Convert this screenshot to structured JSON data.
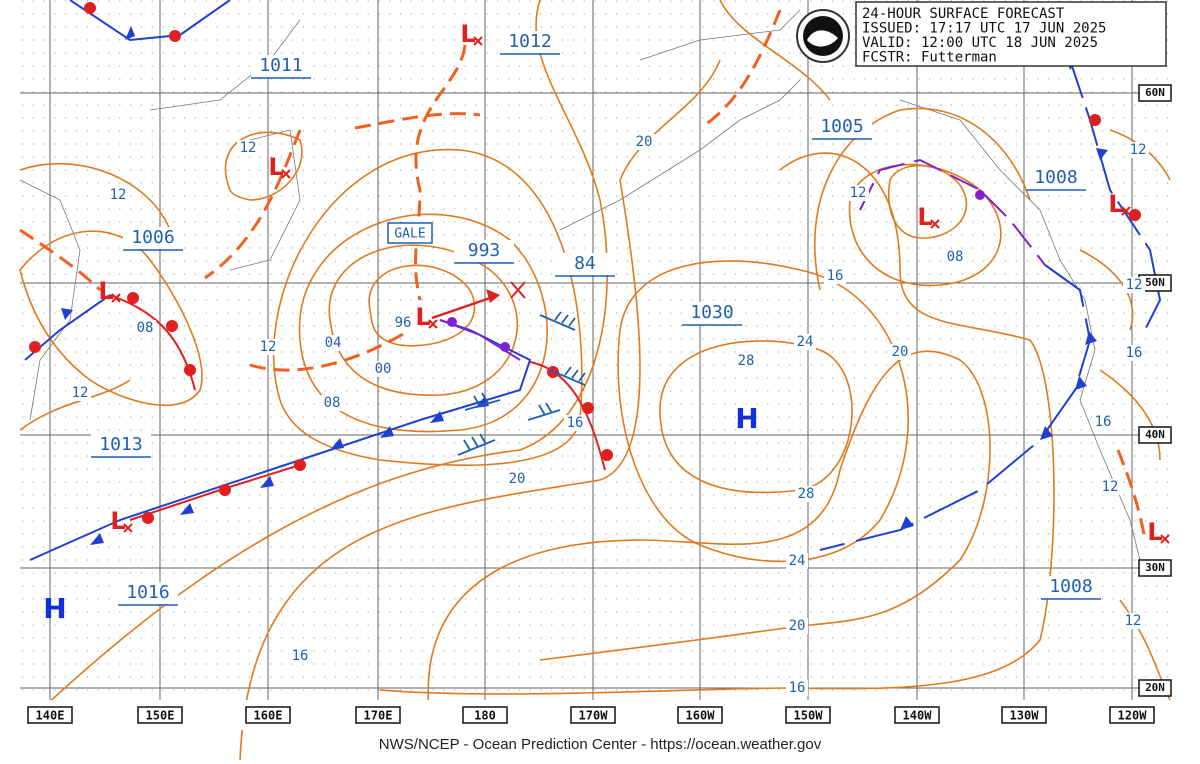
{
  "header": {
    "lines": [
      "24-HOUR SURFACE FORECAST",
      "ISSUED: 17:17 UTC 17 JUN 2025",
      "VALID: 12:00 UTC 18 JUN 2025",
      "FCSTR: Futterman"
    ]
  },
  "footer": "NWS/NCEP - Ocean Prediction Center - https://ocean.weather.gov",
  "longitude_labels": [
    "140E",
    "150E",
    "160E",
    "170E",
    "180",
    "170W",
    "160W",
    "150W",
    "140W",
    "130W",
    "120W"
  ],
  "latitude_labels": [
    "60N",
    "50N",
    "40N",
    "30N",
    "20N"
  ],
  "pressure_labels": [
    "1011",
    "1012",
    "1005",
    "1008",
    "1006",
    "993",
    "84",
    "1030",
    "1013",
    "1016",
    "1008"
  ],
  "isobar_labels": [
    "12",
    "12",
    "08",
    "12",
    "12",
    "04",
    "96",
    "00",
    "08",
    "20",
    "16",
    "08",
    "12",
    "24",
    "20",
    "28",
    "16",
    "20",
    "28",
    "24",
    "20",
    "16",
    "16",
    "12",
    "12",
    "16",
    "16",
    "12",
    "12"
  ],
  "highs": [
    "H",
    "H"
  ],
  "lows": [
    "L",
    "L",
    "L",
    "L",
    "L",
    "L",
    "L",
    "L"
  ],
  "gale_label": "GALE"
}
